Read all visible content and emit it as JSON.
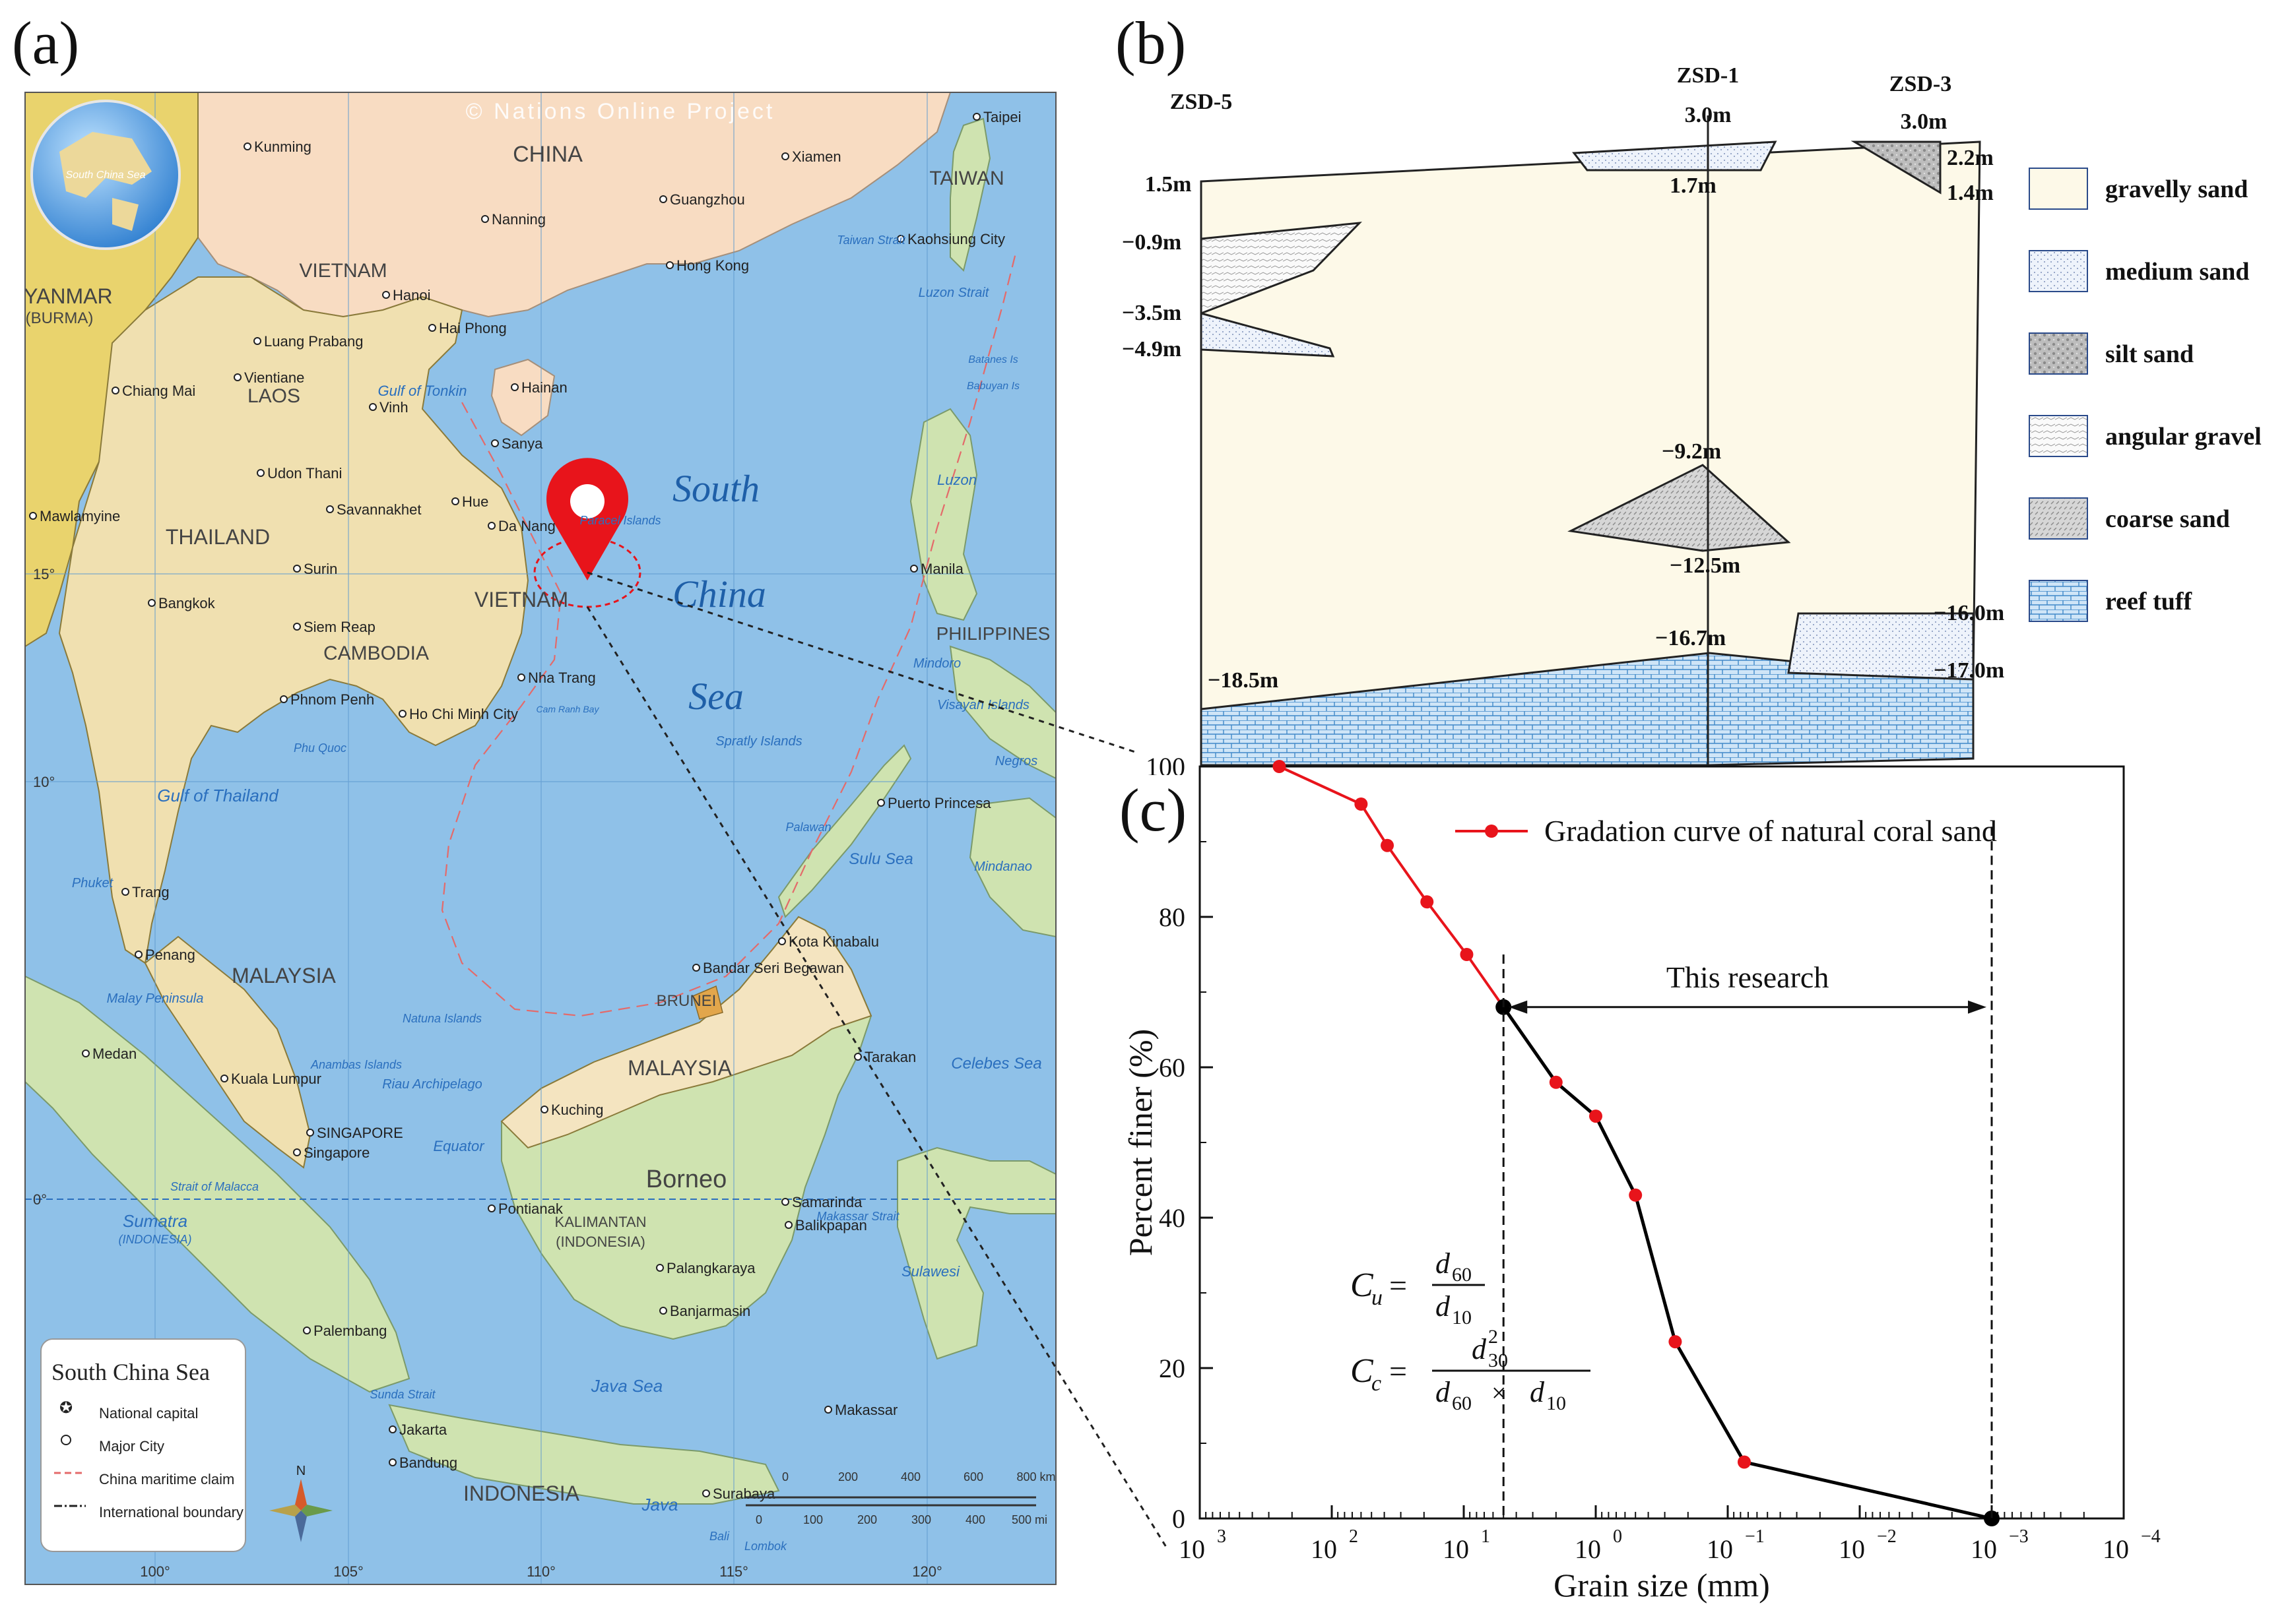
{
  "panels": {
    "a": "(a)",
    "b": "(b)",
    "c": "(c)"
  },
  "map": {
    "copyright": "© Nations Online Project",
    "globe_label": "South China Sea",
    "sea_labels": [
      "South",
      "China",
      "Sea"
    ],
    "countries": [
      {
        "name": "CHINA"
      },
      {
        "name": "TAIWAN"
      },
      {
        "name": "MYANMAR"
      },
      {
        "name": "(BURMA)"
      },
      {
        "name": "VIETNAM"
      },
      {
        "name": "LAOS"
      },
      {
        "name": "THAILAND"
      },
      {
        "name": "VIETNAM"
      },
      {
        "name": "CAMBODIA"
      },
      {
        "name": "PHILIPPINES"
      },
      {
        "name": "MALAYSIA"
      },
      {
        "name": "MALAYSIA"
      },
      {
        "name": "BRUNEI"
      },
      {
        "name": "INDONESIA"
      },
      {
        "name": "KALIMANTAN"
      },
      {
        "name": "(INDONESIA)"
      },
      {
        "name": "Borneo"
      }
    ],
    "cities": [
      {
        "name": "Kunming"
      },
      {
        "name": "Xiamen"
      },
      {
        "name": "Guangzhou"
      },
      {
        "name": "Nanning"
      },
      {
        "name": "Hong Kong"
      },
      {
        "name": "Taipei"
      },
      {
        "name": "Kaohsiung City"
      },
      {
        "name": "Hanoi"
      },
      {
        "name": "Hai Phong"
      },
      {
        "name": "Luang Prabang"
      },
      {
        "name": "Vientiane"
      },
      {
        "name": "Chiang Mai"
      },
      {
        "name": "Vinh"
      },
      {
        "name": "Sanya"
      },
      {
        "name": "Hainan"
      },
      {
        "name": "Udon Thani"
      },
      {
        "name": "Mawlamyine"
      },
      {
        "name": "Hue"
      },
      {
        "name": "Da Nang"
      },
      {
        "name": "Savannakhet"
      },
      {
        "name": "Bangkok"
      },
      {
        "name": "Surin"
      },
      {
        "name": "Siem Reap"
      },
      {
        "name": "Nha Trang"
      },
      {
        "name": "Phnom Penh"
      },
      {
        "name": "Ho Chi Minh City"
      },
      {
        "name": "Manila"
      },
      {
        "name": "Puerto Princesa"
      },
      {
        "name": "Trang"
      },
      {
        "name": "Penang"
      },
      {
        "name": "Kota Kinabalu"
      },
      {
        "name": "Bandar Seri Begawan"
      },
      {
        "name": "Medan"
      },
      {
        "name": "Kuala Lumpur"
      },
      {
        "name": "Kuching"
      },
      {
        "name": "SINGAPORE"
      },
      {
        "name": "Singapore"
      },
      {
        "name": "Tarakan"
      },
      {
        "name": "Pontianak"
      },
      {
        "name": "Samarinda"
      },
      {
        "name": "Balikpapan"
      },
      {
        "name": "Palangkaraya"
      },
      {
        "name": "Banjarmasin"
      },
      {
        "name": "Palembang"
      },
      {
        "name": "Makassar"
      },
      {
        "name": "Jakarta"
      },
      {
        "name": "Bandung"
      },
      {
        "name": "Surabaya"
      }
    ],
    "water_labels": [
      {
        "name": "Gulf of Tonkin"
      },
      {
        "name": "Gulf of Thailand"
      },
      {
        "name": "Taiwan Strait"
      },
      {
        "name": "Luzon Strait"
      },
      {
        "name": "Luzon"
      },
      {
        "name": "Mindoro"
      },
      {
        "name": "Visayan Islands"
      },
      {
        "name": "Negros"
      },
      {
        "name": "Mindanao"
      },
      {
        "name": "Sulu Sea"
      },
      {
        "name": "Celebes Sea"
      },
      {
        "name": "Palawan"
      },
      {
        "name": "Spratly Islands"
      },
      {
        "name": "Paracel Islands"
      },
      {
        "name": "Natuna Islands"
      },
      {
        "name": "Anambas Islands"
      },
      {
        "name": "Riau Archipelago"
      },
      {
        "name": "Phuket"
      },
      {
        "name": "Sumatra"
      },
      {
        "name": "(INDONESIA)"
      },
      {
        "name": "Equator"
      },
      {
        "name": "Sulawesi"
      },
      {
        "name": "Java Sea"
      },
      {
        "name": "Java"
      },
      {
        "name": "Makassar Strait"
      },
      {
        "name": "Strait of Malacca"
      },
      {
        "name": "Malay Peninsula"
      },
      {
        "name": "Sunda Strait"
      },
      {
        "name": "Bali"
      },
      {
        "name": "Lombok"
      },
      {
        "name": "Cam Ranh Bay"
      },
      {
        "name": "Phu Quoc"
      },
      {
        "name": "Batanes Is"
      },
      {
        "name": "Babuyan Is"
      }
    ],
    "lon_labels": [
      "100°",
      "105°",
      "110°",
      "115°",
      "120°"
    ],
    "lat_labels": [
      "15°",
      "10°",
      "0°"
    ],
    "legend": {
      "title": "South China Sea",
      "items": [
        "National capital",
        "Major City",
        "China maritime claim",
        "International boundary"
      ]
    },
    "scale": {
      "km": [
        "0",
        "200",
        "400",
        "600",
        "800 km"
      ],
      "mi": [
        "0",
        "100",
        "200",
        "300",
        "400",
        "500 mi"
      ]
    },
    "compass": "N"
  },
  "profile": {
    "boreholes": [
      {
        "name": "ZSD-5",
        "top": "1.5m",
        "marks": [
          "−0.9m",
          "−3.5m",
          "−4.9m",
          "−18.5m"
        ]
      },
      {
        "name": "ZSD-1",
        "top": "3.0m",
        "marks": [
          "1.7m",
          "−9.2m",
          "−12.5m",
          "−16.7m"
        ]
      },
      {
        "name": "ZSD-3",
        "top": "3.0m",
        "marks": [
          "2.2m",
          "1.4m",
          "−16.0m",
          "−17.0m"
        ]
      }
    ],
    "legend": [
      {
        "label": "gravelly sand",
        "pattern": "gravelly"
      },
      {
        "label": "medium sand",
        "pattern": "medium"
      },
      {
        "label": "silt sand",
        "pattern": "silt"
      },
      {
        "label": "angular gravel",
        "pattern": "angular"
      },
      {
        "label": "coarse sand",
        "pattern": "coarse"
      },
      {
        "label": "reef tuff",
        "pattern": "reef"
      }
    ]
  },
  "chart_data": {
    "type": "line",
    "xlabel": "Grain size (mm)",
    "ylabel": "Percent finer (%)",
    "x_scale": "log",
    "x_reversed": true,
    "xlim": [
      1000,
      0.0001
    ],
    "ylim": [
      0,
      100
    ],
    "x_ticks": [
      {
        "base": "10",
        "exp": "3"
      },
      {
        "base": "10",
        "exp": "2"
      },
      {
        "base": "10",
        "exp": "1"
      },
      {
        "base": "10",
        "exp": "0"
      },
      {
        "base": "10",
        "exp": "−1"
      },
      {
        "base": "10",
        "exp": "−2"
      },
      {
        "base": "10",
        "exp": "−3"
      },
      {
        "base": "10",
        "exp": "−4"
      }
    ],
    "y_ticks": [
      "0",
      "20",
      "40",
      "60",
      "80",
      "100"
    ],
    "legend": "Gradation curve of natural coral sand",
    "series": [
      {
        "name": "Gradation curve of natural coral sand",
        "color": "#e8141b",
        "x": [
          250,
          60,
          38,
          19,
          9.5,
          5,
          2,
          1,
          0.5,
          0.25,
          0.075,
          0.001
        ],
        "y": [
          100,
          95,
          89.5,
          82,
          75,
          68,
          58,
          53.5,
          43,
          23.5,
          7.5,
          0
        ]
      }
    ],
    "highlight_color": "#000000",
    "highlight_range": [
      5,
      0.001
    ],
    "annotation": "This research",
    "formulas": {
      "cu_lhs": "C",
      "cu_sub": "u",
      "cu_num": "d",
      "cu_num_sub": "60",
      "cu_den": "d",
      "cu_den_sub": "10",
      "cc_lhs": "C",
      "cc_sub": "c",
      "cc_num": "d",
      "cc_num_sub": "30",
      "cc_num_sup": "2",
      "cc_den1": "d",
      "cc_den1_sub": "60",
      "cc_times": "×",
      "cc_den2": "d",
      "cc_den2_sub": "10"
    }
  }
}
